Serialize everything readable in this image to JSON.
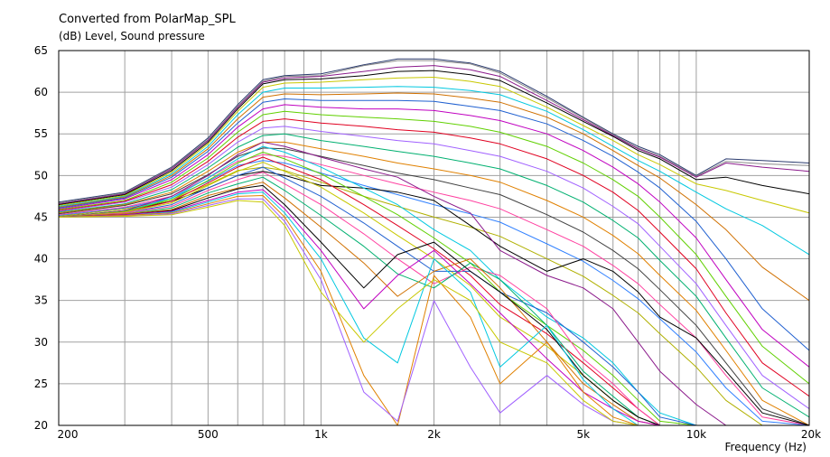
{
  "chart_data": {
    "type": "line",
    "title": "Converted from PolarMap_SPL",
    "ylabel": "(dB)  Level, Sound pressure",
    "xlabel": "Frequency  (Hz)",
    "xscale": "log",
    "xlim": [
      200,
      20000
    ],
    "ylim": [
      20,
      65
    ],
    "grid": true,
    "x_ticks": [
      {
        "value": 200,
        "label": "200"
      },
      {
        "value": 500,
        "label": "500"
      },
      {
        "value": 1000,
        "label": "1k"
      },
      {
        "value": 2000,
        "label": "2k"
      },
      {
        "value": 5000,
        "label": "5k"
      },
      {
        "value": 10000,
        "label": "10k"
      },
      {
        "value": 20000,
        "label": "20k"
      }
    ],
    "y_ticks": [
      20,
      25,
      30,
      35,
      40,
      45,
      50,
      55,
      60,
      65
    ],
    "x": [
      200,
      300,
      400,
      500,
      600,
      700,
      800,
      1000,
      1300,
      1600,
      2000,
      2500,
      3000,
      4000,
      5000,
      6000,
      7000,
      8000,
      10000,
      12000,
      15000,
      20000
    ],
    "series": [
      {
        "color": "#2a3a6e",
        "values": [
          46.8,
          48.0,
          51.0,
          54.5,
          58.5,
          61.5,
          62.0,
          62.2,
          63.3,
          64.0,
          64.0,
          63.5,
          62.5,
          59.5,
          57.0,
          55.0,
          53.5,
          52.5,
          50.0,
          52.0,
          51.8,
          51.5
        ]
      },
      {
        "color": "#8a8a8a",
        "values": [
          46.7,
          47.9,
          50.9,
          54.3,
          58.3,
          61.3,
          61.9,
          62.0,
          63.2,
          63.8,
          63.8,
          63.4,
          62.3,
          59.3,
          56.9,
          54.9,
          53.3,
          52.3,
          49.9,
          51.7,
          51.4,
          51.2
        ]
      },
      {
        "color": "#8b1a8b",
        "values": [
          46.6,
          47.8,
          50.8,
          54.2,
          58.2,
          61.2,
          61.7,
          61.9,
          62.5,
          63.0,
          63.2,
          62.7,
          61.9,
          59.0,
          56.7,
          54.8,
          53.2,
          52.2,
          49.8,
          51.5,
          51.0,
          50.5
        ]
      },
      {
        "color": "#000000",
        "values": [
          46.5,
          47.7,
          50.6,
          54.0,
          58.0,
          61.0,
          61.5,
          61.6,
          62.0,
          62.5,
          62.6,
          62.1,
          61.4,
          58.7,
          56.5,
          54.7,
          53.0,
          52.0,
          49.5,
          49.8,
          48.8,
          47.8
        ]
      },
      {
        "color": "#c8c800",
        "values": [
          46.4,
          47.6,
          50.4,
          53.8,
          57.7,
          60.6,
          61.1,
          61.2,
          61.5,
          61.7,
          61.8,
          61.3,
          60.7,
          58.2,
          56.0,
          54.2,
          52.5,
          51.3,
          49.0,
          48.2,
          47.0,
          45.5
        ]
      },
      {
        "color": "#00c8e0",
        "values": [
          46.3,
          47.5,
          50.2,
          53.5,
          57.3,
          60.0,
          60.5,
          60.5,
          60.6,
          60.7,
          60.6,
          60.2,
          59.7,
          57.7,
          55.5,
          53.5,
          51.8,
          50.5,
          48.0,
          46.0,
          44.0,
          40.5
        ]
      },
      {
        "color": "#d07000",
        "values": [
          46.2,
          47.4,
          50.0,
          53.2,
          56.8,
          59.4,
          59.8,
          59.7,
          59.8,
          59.9,
          59.8,
          59.3,
          58.8,
          57.0,
          55.0,
          53.0,
          51.2,
          49.7,
          46.5,
          43.5,
          39.0,
          35.0
        ]
      },
      {
        "color": "#2060d0",
        "values": [
          46.1,
          47.3,
          49.8,
          52.9,
          56.3,
          58.8,
          59.2,
          59.0,
          59.0,
          59.0,
          58.9,
          58.3,
          57.8,
          56.2,
          54.2,
          52.3,
          50.4,
          48.5,
          44.5,
          40.0,
          34.0,
          29.0
        ]
      },
      {
        "color": "#c000c0",
        "values": [
          46.0,
          47.2,
          49.5,
          52.5,
          55.8,
          58.0,
          58.5,
          58.2,
          58.0,
          58.0,
          57.8,
          57.2,
          56.6,
          55.0,
          53.0,
          51.0,
          49.0,
          46.8,
          42.5,
          37.5,
          31.5,
          27.0
        ]
      },
      {
        "color": "#60d000",
        "values": [
          45.9,
          47.0,
          49.2,
          52.1,
          55.2,
          57.3,
          57.7,
          57.3,
          57.0,
          56.8,
          56.5,
          55.9,
          55.2,
          53.5,
          51.5,
          49.5,
          47.5,
          45.0,
          40.5,
          35.5,
          29.5,
          25.0
        ]
      },
      {
        "color": "#e00020",
        "values": [
          45.8,
          46.9,
          48.9,
          51.7,
          54.6,
          56.5,
          56.8,
          56.3,
          55.9,
          55.5,
          55.2,
          54.5,
          53.8,
          52.0,
          50.0,
          48.0,
          45.8,
          43.2,
          38.8,
          33.5,
          27.5,
          23.5
        ]
      },
      {
        "color": "#a060ff",
        "values": [
          45.7,
          46.8,
          48.6,
          51.3,
          54.0,
          55.7,
          55.9,
          55.3,
          54.7,
          54.2,
          53.8,
          53.0,
          52.3,
          50.5,
          48.5,
          46.3,
          44.2,
          41.5,
          37.0,
          32.0,
          26.0,
          22.0
        ]
      },
      {
        "color": "#00b070",
        "values": [
          45.6,
          46.6,
          48.3,
          50.9,
          53.4,
          54.8,
          55.0,
          54.2,
          53.5,
          52.9,
          52.3,
          51.5,
          50.8,
          48.8,
          46.8,
          44.6,
          42.5,
          39.8,
          35.5,
          30.5,
          24.5,
          21.0
        ]
      },
      {
        "color": "#e08000",
        "values": [
          45.5,
          46.5,
          48.0,
          50.5,
          52.8,
          54.0,
          54.0,
          53.2,
          52.3,
          51.5,
          50.8,
          50.0,
          49.2,
          47.0,
          45.0,
          42.8,
          40.6,
          38.0,
          33.8,
          29.0,
          23.0,
          20.0
        ]
      },
      {
        "color": "#404040",
        "values": [
          45.4,
          46.4,
          47.8,
          50.1,
          52.3,
          53.3,
          53.2,
          52.3,
          51.2,
          50.3,
          49.5,
          48.5,
          47.7,
          45.3,
          43.2,
          41.0,
          38.8,
          36.3,
          32.0,
          27.5,
          22.0,
          20.0
        ]
      },
      {
        "color": "#ff40a0",
        "values": [
          45.3,
          46.2,
          47.5,
          49.7,
          51.7,
          52.5,
          52.3,
          51.3,
          50.0,
          49.0,
          48.0,
          47.0,
          46.0,
          43.5,
          41.5,
          39.2,
          37.0,
          34.5,
          30.5,
          26.0,
          21.0,
          20.0
        ]
      },
      {
        "color": "#3080ff",
        "values": [
          45.2,
          46.1,
          47.3,
          49.3,
          51.2,
          51.8,
          51.5,
          50.3,
          48.8,
          47.7,
          46.5,
          45.4,
          44.4,
          41.8,
          39.7,
          37.4,
          35.2,
          32.8,
          28.8,
          24.5,
          20.5,
          20.0
        ]
      },
      {
        "color": "#b0b000",
        "values": [
          45.1,
          46.0,
          47.1,
          48.9,
          50.6,
          51.0,
          50.6,
          49.2,
          47.5,
          46.3,
          45.0,
          43.8,
          42.7,
          40.0,
          37.9,
          35.6,
          33.5,
          31.0,
          27.0,
          23.0,
          20.0,
          20.0
        ]
      },
      {
        "color": "#000000",
        "values": [
          45.0,
          45.8,
          46.9,
          48.5,
          50.0,
          50.5,
          50.0,
          48.8,
          48.5,
          48.0,
          47.0,
          44.0,
          41.5,
          38.5,
          40.0,
          38.5,
          36.0,
          33.0,
          30.5,
          26.5,
          21.5,
          20.0
        ]
      },
      {
        "color": "#8b1a8b",
        "values": [
          45.0,
          45.8,
          47.5,
          50.0,
          52.5,
          54.0,
          53.5,
          52.2,
          50.8,
          49.8,
          47.5,
          45.5,
          41.0,
          38.0,
          36.5,
          34.0,
          30.0,
          26.5,
          22.5,
          20.0,
          20.0,
          20.0
        ]
      },
      {
        "color": "#00c8e0",
        "values": [
          45.0,
          45.7,
          47.3,
          49.7,
          52.0,
          53.5,
          52.8,
          51.0,
          48.5,
          46.5,
          43.5,
          41.0,
          37.5,
          33.0,
          30.5,
          27.5,
          24.0,
          21.5,
          20.0,
          20.0,
          20.0,
          20.0
        ]
      },
      {
        "color": "#60d000",
        "values": [
          45.0,
          45.7,
          47.1,
          49.4,
          51.5,
          52.8,
          52.0,
          50.2,
          47.5,
          45.3,
          42.5,
          39.5,
          36.0,
          32.0,
          29.0,
          26.0,
          23.0,
          20.5,
          20.0,
          20.0,
          20.0,
          20.0
        ]
      },
      {
        "color": "#e00020",
        "values": [
          45.0,
          45.6,
          46.9,
          49.1,
          51.0,
          52.2,
          51.2,
          49.5,
          46.5,
          44.0,
          41.2,
          38.0,
          34.5,
          31.0,
          27.5,
          24.5,
          22.0,
          20.0,
          20.0,
          20.0,
          20.0,
          20.0
        ]
      },
      {
        "color": "#c8c800",
        "values": [
          45.0,
          45.6,
          46.7,
          48.8,
          50.5,
          51.6,
          50.5,
          48.6,
          45.5,
          42.8,
          40.0,
          36.8,
          33.0,
          29.5,
          26.0,
          23.0,
          21.0,
          20.0,
          20.0,
          20.0,
          20.0,
          20.0
        ]
      },
      {
        "color": "#2060d0",
        "values": [
          45.0,
          45.5,
          46.5,
          48.5,
          50.0,
          51.0,
          49.7,
          47.5,
          44.3,
          41.5,
          38.5,
          38.5,
          36.0,
          33.5,
          30.0,
          27.0,
          24.0,
          21.0,
          20.0,
          20.0,
          20.0,
          20.0
        ]
      },
      {
        "color": "#ff40a0",
        "values": [
          45.0,
          45.5,
          46.3,
          48.2,
          49.5,
          50.4,
          49.0,
          46.5,
          43.0,
          40.0,
          37.0,
          39.0,
          38.0,
          34.0,
          28.0,
          25.0,
          22.0,
          20.0,
          20.0,
          20.0,
          20.0,
          20.0
        ]
      },
      {
        "color": "#00b070",
        "values": [
          45.0,
          45.4,
          46.1,
          47.9,
          49.0,
          49.8,
          48.2,
          45.2,
          41.5,
          38.2,
          36.5,
          39.5,
          37.5,
          32.0,
          26.5,
          23.5,
          21.0,
          20.0,
          20.0,
          20.0,
          20.0,
          20.0
        ]
      },
      {
        "color": "#d07000",
        "values": [
          45.0,
          45.4,
          45.9,
          47.6,
          48.5,
          49.2,
          47.3,
          43.8,
          39.5,
          35.5,
          38.5,
          40.0,
          36.5,
          30.0,
          25.0,
          22.5,
          20.5,
          20.0,
          20.0,
          20.0,
          20.0,
          20.0
        ]
      },
      {
        "color": "#000000",
        "values": [
          45.0,
          45.3,
          45.8,
          47.3,
          48.4,
          48.8,
          46.5,
          42.0,
          36.5,
          40.5,
          42.0,
          38.5,
          36.0,
          31.5,
          26.0,
          23.0,
          21.0,
          20.0,
          20.0,
          20.0,
          20.0,
          20.0
        ]
      },
      {
        "color": "#c000c0",
        "values": [
          45.0,
          45.3,
          45.7,
          47.0,
          48.0,
          48.3,
          46.0,
          41.0,
          34.0,
          38.0,
          41.0,
          37.0,
          33.5,
          28.0,
          24.0,
          22.0,
          20.5,
          20.0,
          20.0,
          20.0,
          20.0,
          20.0
        ]
      },
      {
        "color": "#00c8e0",
        "values": [
          45.0,
          45.2,
          45.6,
          46.8,
          47.8,
          48.0,
          45.5,
          40.0,
          30.5,
          27.5,
          40.0,
          36.0,
          27.0,
          32.0,
          25.5,
          22.0,
          20.0,
          20.0,
          20.0,
          20.0,
          20.0,
          20.0
        ]
      },
      {
        "color": "#e08000",
        "values": [
          45.0,
          45.2,
          45.5,
          46.6,
          47.5,
          47.6,
          45.0,
          38.5,
          26.0,
          20.0,
          38.0,
          33.0,
          25.0,
          30.0,
          24.0,
          21.0,
          20.0,
          20.0,
          20.0,
          20.0,
          20.0,
          20.0
        ]
      },
      {
        "color": "#a060ff",
        "values": [
          45.0,
          45.1,
          45.4,
          46.4,
          47.2,
          47.2,
          44.5,
          37.5,
          24.0,
          20.5,
          35.0,
          27.0,
          21.5,
          26.0,
          22.5,
          20.5,
          20.0,
          20.0,
          20.0,
          20.0,
          20.0,
          20.0
        ]
      },
      {
        "color": "#c8c800",
        "values": [
          45.0,
          45.1,
          45.3,
          46.2,
          47.0,
          46.8,
          44.0,
          36.0,
          30.0,
          34.0,
          37.5,
          35.0,
          30.0,
          27.5,
          23.0,
          20.5,
          20.0,
          20.0,
          20.0,
          20.0,
          20.0,
          20.0
        ]
      }
    ]
  }
}
